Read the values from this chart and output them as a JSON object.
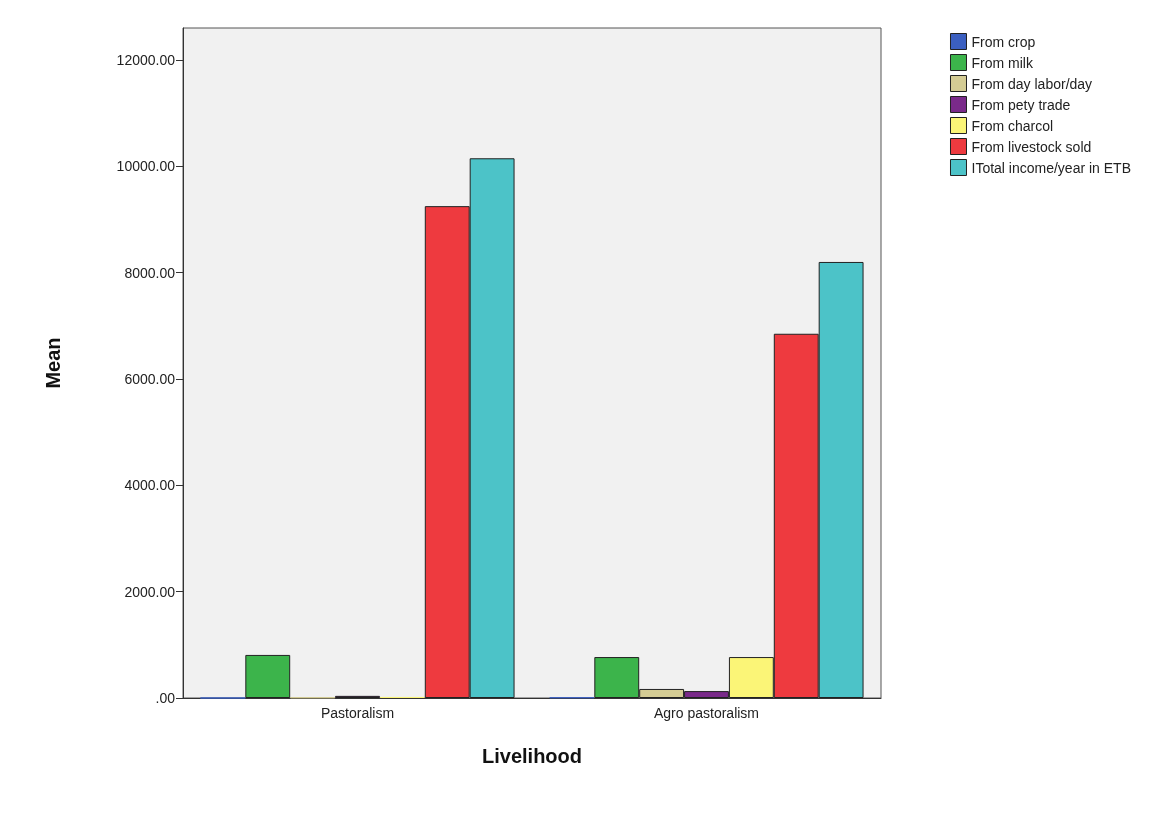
{
  "chart_data": {
    "type": "bar",
    "xlabel": "Livelihood",
    "ylabel": "Mean",
    "categories": [
      "Pastoralism",
      "Agro pastoralism"
    ],
    "series": [
      {
        "name": "From crop",
        "color": "#3b5fc0",
        "values": [
          0,
          10
        ]
      },
      {
        "name": "From milk",
        "color": "#3cb44b",
        "values": [
          810,
          770
        ]
      },
      {
        "name": "From day labor/day",
        "color": "#d4cc94",
        "values": [
          10,
          170
        ]
      },
      {
        "name": "From pety trade",
        "color": "#7a2a8a",
        "values": [
          40,
          130
        ]
      },
      {
        "name": "From charcol",
        "color": "#fbf577",
        "values": [
          20,
          770
        ]
      },
      {
        "name": "From livestock sold",
        "color": "#ee3a3f",
        "values": [
          9250,
          6850
        ]
      },
      {
        "name": "ITotal income/year in ETB",
        "color": "#4cc3c8",
        "values": [
          10150,
          8200
        ]
      }
    ],
    "ylim": [
      0,
      12600
    ],
    "yticks": [
      {
        "value": 0,
        "label": ".00"
      },
      {
        "value": 2000,
        "label": "2000.00"
      },
      {
        "value": 4000,
        "label": "4000.00"
      },
      {
        "value": 6000,
        "label": "6000.00"
      },
      {
        "value": 8000,
        "label": "8000.00"
      },
      {
        "value": 10000,
        "label": "10000.00"
      },
      {
        "value": 12000,
        "label": "12000.00"
      }
    ],
    "grid": false,
    "legend": "top right"
  }
}
